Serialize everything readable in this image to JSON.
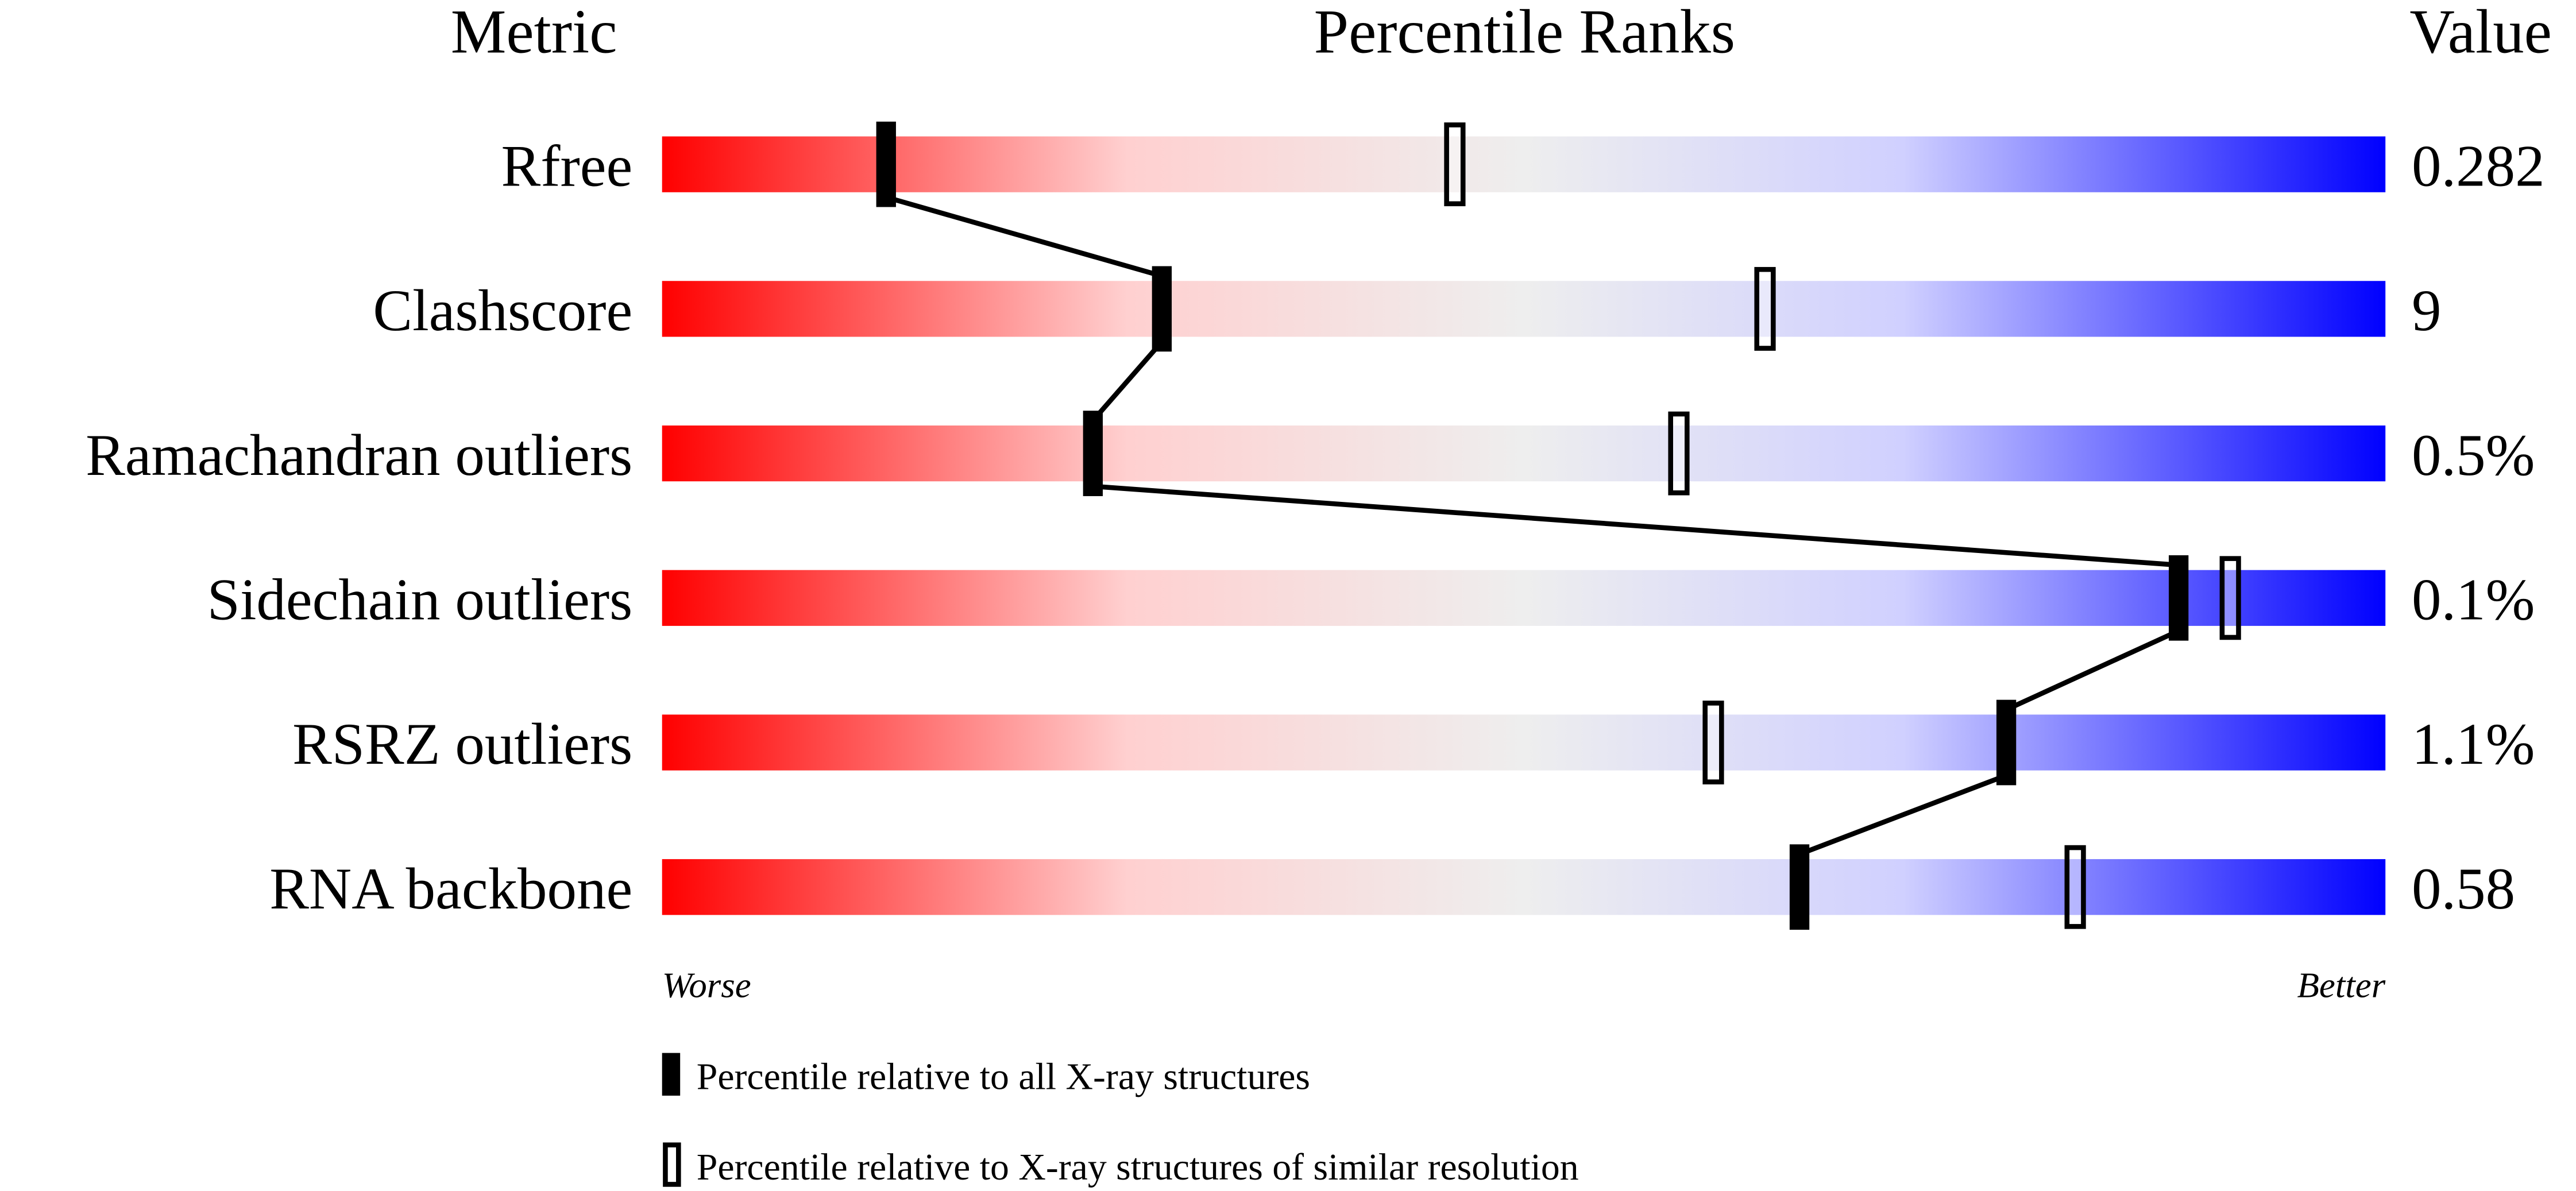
{
  "chart_data": {
    "type": "bar",
    "subtype": "percentile-slider",
    "headers": {
      "metric": "Metric",
      "ranks": "Percentile Ranks",
      "value": "Value"
    },
    "xlim": [
      0,
      100
    ],
    "axis_labels": {
      "left": "Worse",
      "right": "Better"
    },
    "gradient_colors": [
      "#ff0000",
      "#ffd0d0",
      "#eeeeee",
      "#d0d0ff",
      "#0000ff"
    ],
    "rows": [
      {
        "metric": "Rfree",
        "value": "0.282",
        "percentile_all": 13,
        "percentile_similar": 46
      },
      {
        "metric": "Clashscore",
        "value": "9",
        "percentile_all": 29,
        "percentile_similar": 64
      },
      {
        "metric": "Ramachandran outliers",
        "value": "0.5%",
        "percentile_all": 25,
        "percentile_similar": 59
      },
      {
        "metric": "Sidechain outliers",
        "value": "0.1%",
        "percentile_all": 88,
        "percentile_similar": 91
      },
      {
        "metric": "RSRZ outliers",
        "value": "1.1%",
        "percentile_all": 78,
        "percentile_similar": 61
      },
      {
        "metric": "RNA backbone",
        "value": "0.58",
        "percentile_all": 66,
        "percentile_similar": 82
      }
    ],
    "legend": {
      "placement": "bottom",
      "filled": "Percentile relative to all X-ray structures",
      "open": "Percentile relative to X-ray structures of similar resolution"
    }
  }
}
